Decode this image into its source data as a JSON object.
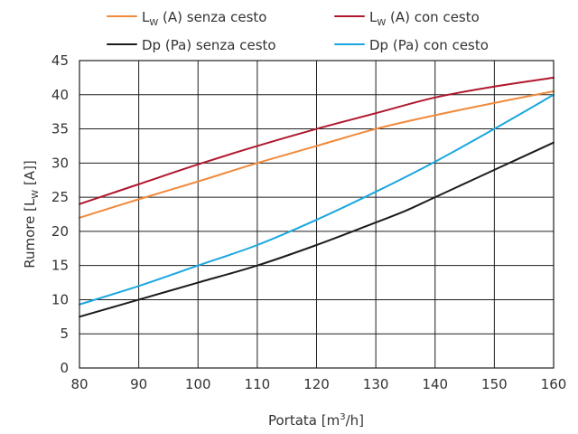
{
  "chart_data": {
    "type": "line",
    "xlabel": {
      "main": "Portata [m",
      "sup": "3",
      "rest": "/h]"
    },
    "ylabel": {
      "main": "Rumore [L",
      "sub": "W",
      "rest": " [A]]"
    },
    "xlim": [
      80,
      160
    ],
    "ylim": [
      0,
      45
    ],
    "xticks": [
      80,
      90,
      100,
      110,
      120,
      130,
      140,
      150,
      160
    ],
    "yticks": [
      0,
      5,
      10,
      15,
      20,
      25,
      30,
      35,
      40,
      45
    ],
    "grid": true,
    "legend_position": "top",
    "series": [
      {
        "name": {
          "main": "L",
          "sub": "W",
          "rest": " (A) senza cesto"
        },
        "color": "#f08a3c",
        "x": [
          80,
          90,
          100,
          110,
          120,
          130,
          140,
          150,
          160
        ],
        "y": [
          22,
          24.7,
          27.3,
          30,
          32.5,
          35,
          37,
          38.8,
          40.5
        ]
      },
      {
        "name": {
          "main": "L",
          "sub": "W",
          "rest": " (A) con cesto"
        },
        "color": "#b0182e",
        "x": [
          80,
          90,
          100,
          110,
          120,
          130,
          140,
          150,
          160
        ],
        "y": [
          24,
          26.9,
          29.8,
          32.5,
          35,
          37.3,
          39.6,
          41.2,
          42.5
        ]
      },
      {
        "name": {
          "main": "Dp (Pa) senza cesto",
          "sub": "",
          "rest": ""
        },
        "color": "#1c1c1c",
        "x": [
          80,
          90,
          100,
          110,
          120,
          130,
          135,
          140,
          150,
          160
        ],
        "y": [
          7.5,
          10,
          12.5,
          15,
          18,
          21.3,
          23,
          25,
          29,
          33
        ]
      },
      {
        "name": {
          "main": "Dp (Pa) con cesto",
          "sub": "",
          "rest": ""
        },
        "color": "#1aa7df",
        "x": [
          80,
          90,
          100,
          110,
          120,
          130,
          140,
          150,
          160
        ],
        "y": [
          9.3,
          12,
          15,
          18,
          21.7,
          25.8,
          30.2,
          35,
          40
        ]
      }
    ]
  }
}
